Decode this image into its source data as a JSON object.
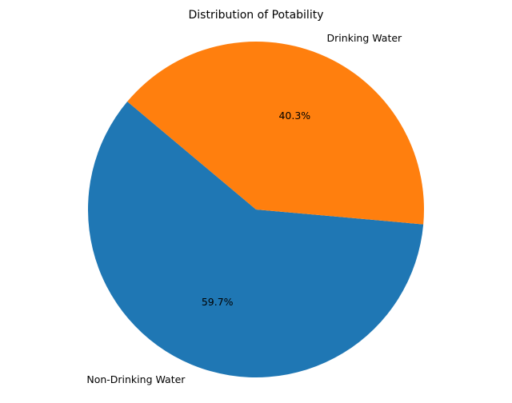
{
  "chart_data": {
    "type": "pie",
    "title": "Distribution of Potability",
    "slices": [
      {
        "label": "Non-Drinking Water",
        "value": 59.7,
        "pct_label": "59.7%",
        "color": "#1f77b4"
      },
      {
        "label": "Drinking Water",
        "value": 40.3,
        "pct_label": "40.3%",
        "color": "#ff7f0e"
      }
    ],
    "start_angle_deg": 140,
    "counterclock": true
  }
}
